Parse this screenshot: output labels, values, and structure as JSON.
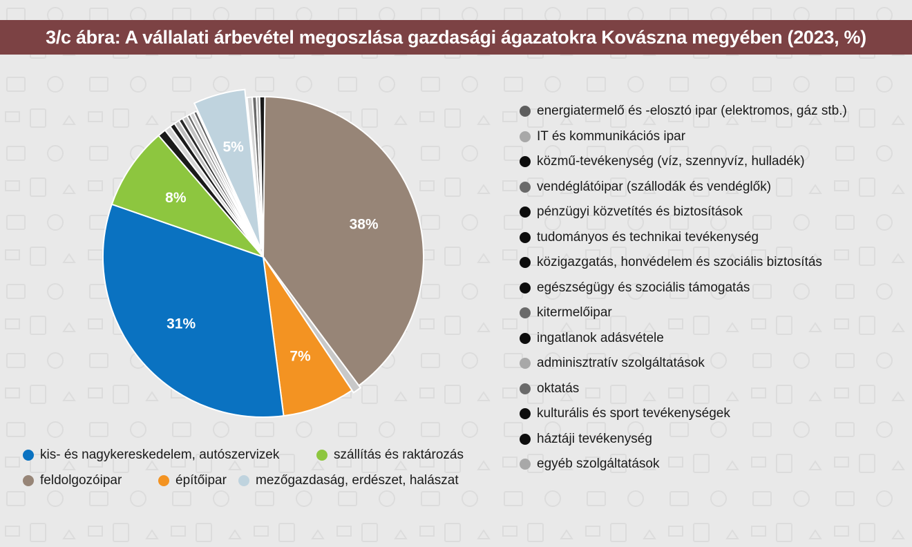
{
  "title": "3/c ábra: A vállalati árbevétel megoszlása gazdasági ágazatokra Kovászna megyében (2023, %)",
  "chart_data": {
    "type": "pie",
    "slices": [
      {
        "name": "feldolgozóipar",
        "value": 38,
        "label": "38%",
        "color": "#978577"
      },
      {
        "name": "egyéb szolgáltatások",
        "value": 0.8,
        "label": "",
        "color": "#c8c8c8"
      },
      {
        "name": "építőipar",
        "value": 7,
        "label": "7%",
        "color": "#f39322"
      },
      {
        "name": "kis- és nagykereskedelem, autószervizek",
        "value": 31,
        "label": "31%",
        "color": "#0a72c1"
      },
      {
        "name": "szállítás és raktározás",
        "value": 8,
        "label": "8%",
        "color": "#8dc63f"
      },
      {
        "name": "közmű-tevékenység (víz, szennyvíz, hulladék)",
        "value": 0.8,
        "label": "",
        "color": "#1a1a1a"
      },
      {
        "name": "vendéglátóipar (szállodák és vendéglők)",
        "value": 0.6,
        "label": "",
        "color": "#d4d4d4"
      },
      {
        "name": "pénzügyi közvetítés és biztosítások",
        "value": 0.5,
        "label": "",
        "color": "#1a1a1a"
      },
      {
        "name": "tudományos és technikai tevékenység",
        "value": 0.5,
        "label": "",
        "color": "#bdbdbd"
      },
      {
        "name": "közigazgatás, honvédelem és szociális biztosítás",
        "value": 0.4,
        "label": "",
        "color": "#2a2a2a"
      },
      {
        "name": "egészségügy és szociális támogatás",
        "value": 0.5,
        "label": "",
        "color": "#c2c2c2"
      },
      {
        "name": "kitermelőipar",
        "value": 0.3,
        "label": "",
        "color": "#6a6a6a"
      },
      {
        "name": "ingatlanok adásvétele",
        "value": 0.4,
        "label": "",
        "color": "#d0d0d0"
      },
      {
        "name": "energiatermelő és -elosztó ipar (elektromos, gáz stb.)",
        "value": 0.3,
        "label": "",
        "color": "#5e5e5e"
      },
      {
        "name": "mezőgazdaság, erdészet, halászat",
        "value": 5,
        "label": "5%",
        "color": "#bfd3de"
      },
      {
        "name": "IT és kommunikációs ipar",
        "value": 0.5,
        "label": "",
        "color": "#d6d6d6"
      },
      {
        "name": "oktatás",
        "value": 0.4,
        "label": "",
        "color": "#6a6a6a"
      },
      {
        "name": "kulturális és sport tevékenységek",
        "value": 0.3,
        "label": "",
        "color": "#b5b5b5"
      },
      {
        "name": "háztáji tevékenység",
        "value": 0.5,
        "label": "",
        "color": "#1a1a1a"
      }
    ]
  },
  "legend_bottom": [
    {
      "label": "kis- és nagykereskedelem, autószervizek",
      "color": "#0a72c1"
    },
    {
      "label": "szállítás és raktározás",
      "color": "#8dc63f"
    },
    {
      "label": "feldolgozóipar",
      "color": "#978577"
    },
    {
      "label": "építőipar",
      "color": "#f39322"
    },
    {
      "label": "mezőgazdaság, erdészet, halászat",
      "color": "#bfd3de"
    }
  ],
  "legend_right": [
    {
      "label": "energiatermelő és -elosztó ipar (elektromos, gáz stb.)",
      "color": "#5e5e5e"
    },
    {
      "label": "IT és kommunikációs ipar",
      "color": "#a8a8a8"
    },
    {
      "label": "közmű-tevékenység (víz, szennyvíz, hulladék)",
      "color": "#0d0d0d"
    },
    {
      "label": "vendéglátóipar (szállodák és vendéglők)",
      "color": "#6a6a6a"
    },
    {
      "label": "pénzügyi közvetítés és biztosítások",
      "color": "#0d0d0d"
    },
    {
      "label": "tudományos és technikai tevékenység",
      "color": "#0d0d0d"
    },
    {
      "label": "közigazgatás, honvédelem és szociális biztosítás",
      "color": "#0d0d0d"
    },
    {
      "label": "egészségügy és szociális támogatás",
      "color": "#0d0d0d"
    },
    {
      "label": "kitermelőipar",
      "color": "#6a6a6a"
    },
    {
      "label": "ingatlanok adásvétele",
      "color": "#0d0d0d"
    },
    {
      "label": "adminisztratív szolgáltatások",
      "color": "#a8a8a8"
    },
    {
      "label": "oktatás",
      "color": "#6a6a6a"
    },
    {
      "label": "kulturális és sport tevékenységek",
      "color": "#0d0d0d"
    },
    {
      "label": "háztáji tevékenység",
      "color": "#0d0d0d"
    },
    {
      "label": "egyéb szolgáltatások",
      "color": "#a8a8a8"
    }
  ]
}
